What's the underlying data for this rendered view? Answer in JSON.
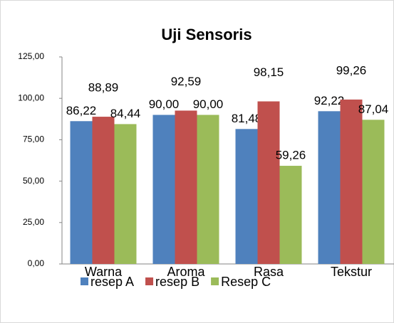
{
  "chart_data": {
    "type": "bar",
    "title": "Uji Sensoris",
    "categories": [
      "Warna",
      "Aroma",
      "Rasa",
      "Tekstur"
    ],
    "series": [
      {
        "name": "resep A",
        "color": "#4f81bd",
        "values": [
          86.22,
          90.0,
          81.48,
          92.22
        ],
        "value_labels": [
          "86,22",
          "90,00",
          "81,48",
          "92,22"
        ]
      },
      {
        "name": "resep B",
        "color": "#c0504d",
        "values": [
          88.89,
          92.59,
          98.15,
          99.26
        ],
        "value_labels": [
          "88,89",
          "92,59",
          "98,15",
          "99,26"
        ]
      },
      {
        "name": "Resep C",
        "color": "#9bbb59",
        "values": [
          84.44,
          90.0,
          59.26,
          87.04
        ],
        "value_labels": [
          "84,44",
          "90,00",
          "59,26",
          "87,04"
        ]
      }
    ],
    "ylim": [
      0,
      125
    ],
    "yticks": [
      {
        "value": 0,
        "label": "0,00"
      },
      {
        "value": 25,
        "label": "25,00"
      },
      {
        "value": 50,
        "label": "50,00"
      },
      {
        "value": 75,
        "label": "75,00"
      },
      {
        "value": 100,
        "label": "100,00"
      },
      {
        "value": 125,
        "label": "125,00"
      }
    ],
    "legend": "bottom"
  }
}
